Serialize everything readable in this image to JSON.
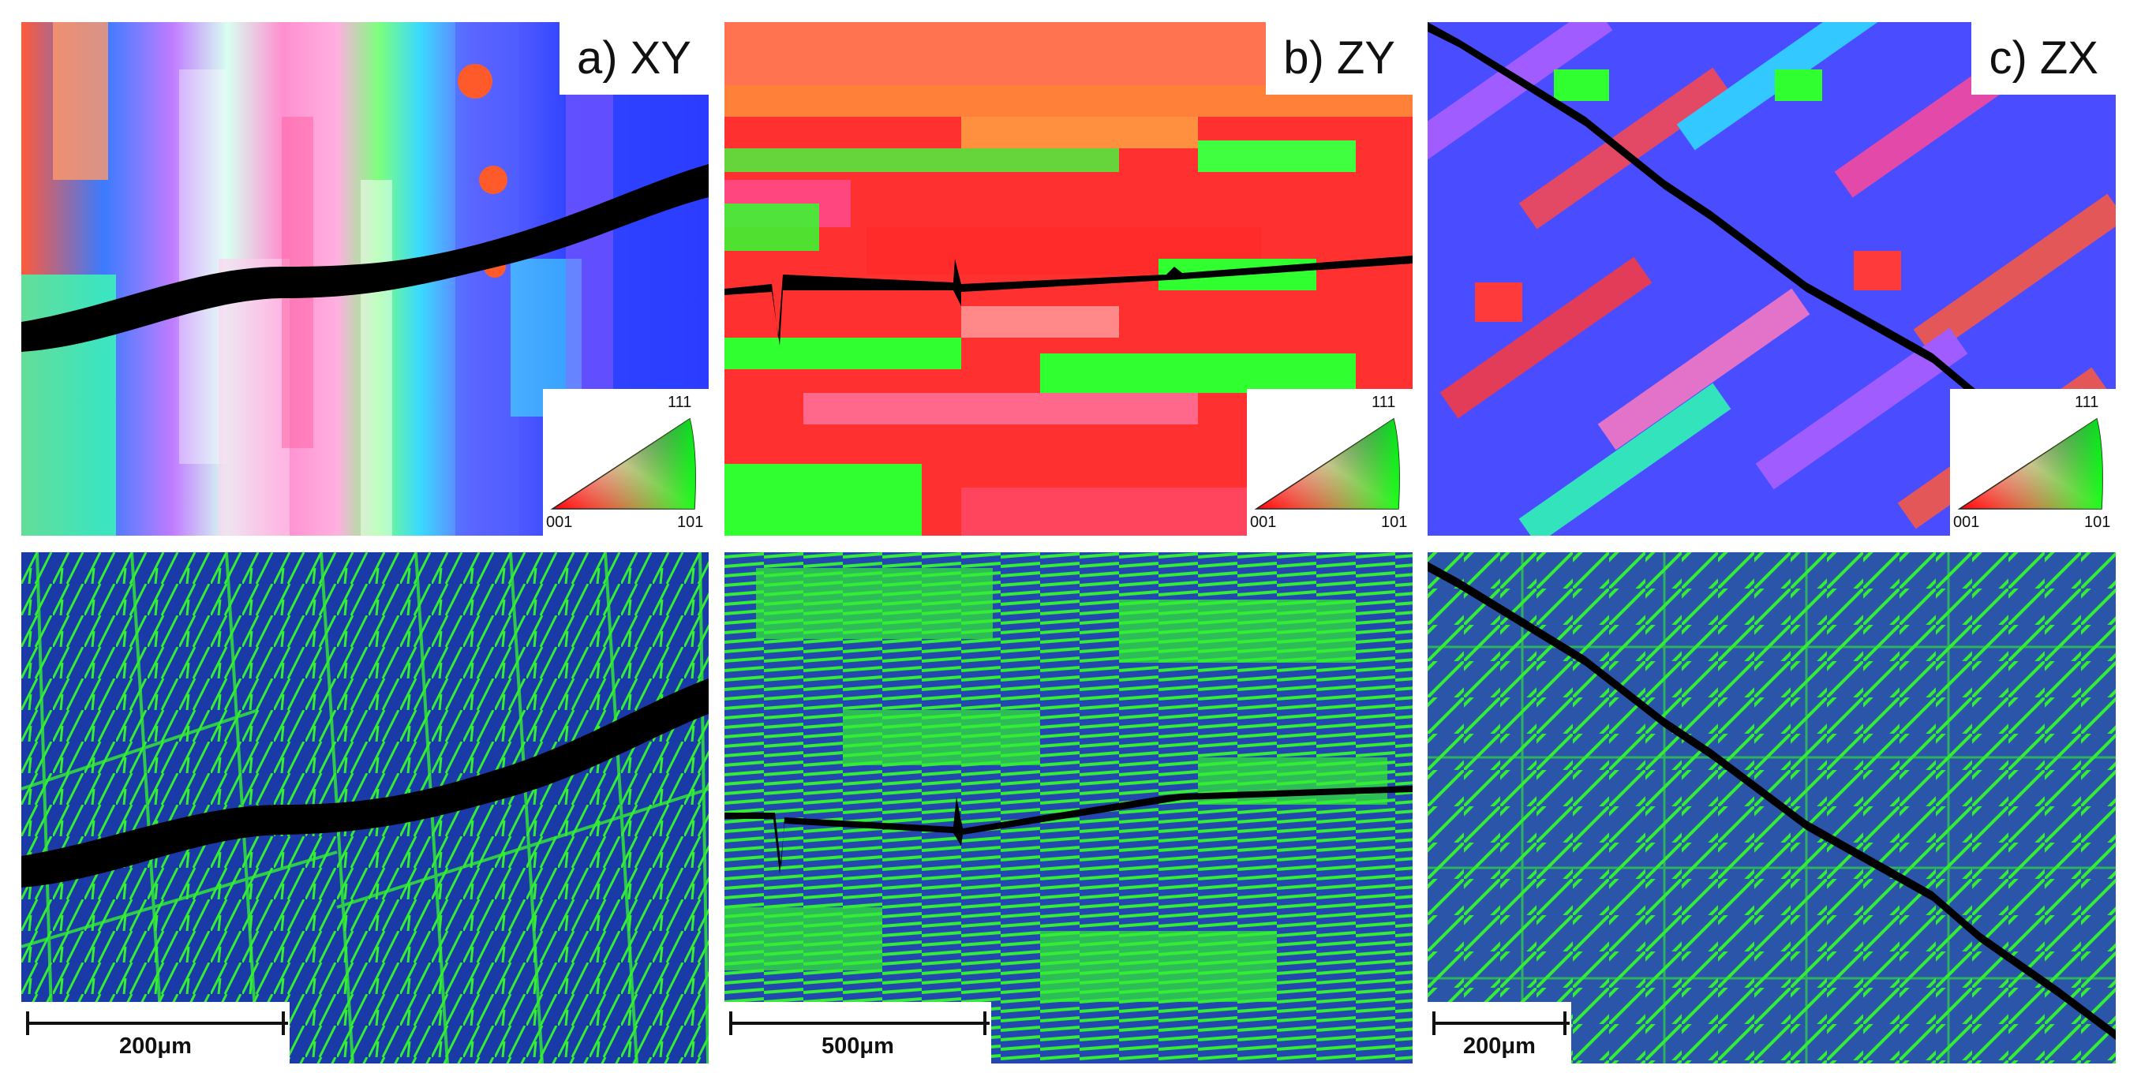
{
  "panels": [
    {
      "id": "a",
      "label": "a) XY",
      "scale_text": "200μm"
    },
    {
      "id": "b",
      "label": "b) ZY",
      "scale_text": "500μm"
    },
    {
      "id": "c",
      "label": "c) ZX",
      "scale_text": "200μm"
    }
  ],
  "ipf_legend": {
    "corner_top": "111",
    "corner_left": "001",
    "corner_right": "101"
  },
  "colors": {
    "ipf_red": "#ff2020",
    "ipf_green": "#20ff20",
    "ipf_blue": "#2040ff",
    "kam_background": "#1a3aa8",
    "kam_high": "#33ee33",
    "crack": "#000000"
  }
}
